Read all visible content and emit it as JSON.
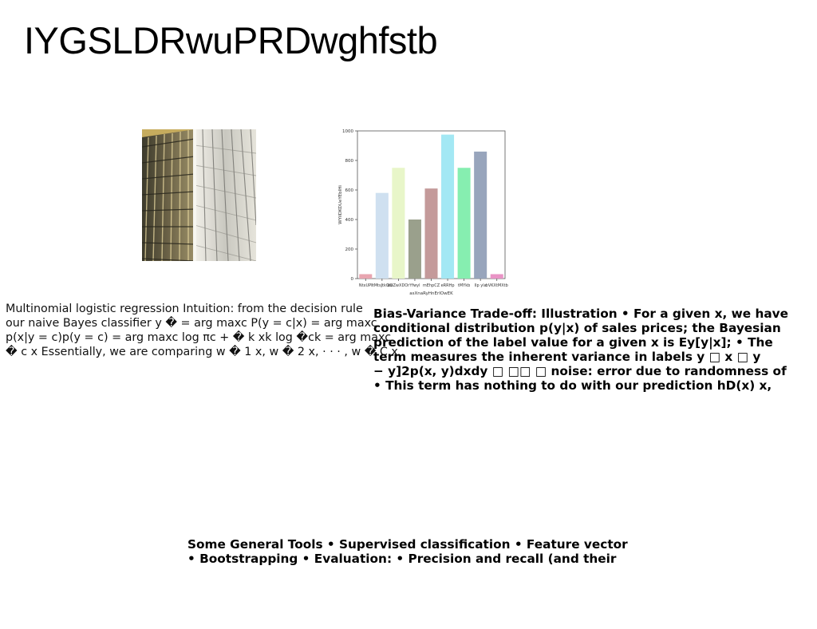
{
  "page": {
    "title": "IYGSLDRwuPRDwghfstb"
  },
  "image": {
    "icon": "building-facade-photo"
  },
  "chart_data": {
    "type": "bar",
    "categories": [
      "NtxUPI",
      "ItMtsJtkGtz",
      "bGZwXDOr",
      "Yfwyl",
      "mEhpCZ",
      "eRRHp",
      "tMYkb",
      "Ilp yla",
      "bVKXtMXtb"
    ],
    "values": [
      30,
      580,
      750,
      400,
      610,
      975,
      750,
      860,
      30
    ],
    "colors": [
      "#e8a5b0",
      "#cfe0f0",
      "#e8f6c9",
      "#9aa08c",
      "#c49a9a",
      "#a3e8f4",
      "#86eeb0",
      "#98a5bc",
      "#e994c6"
    ],
    "xlabel": "asXnaRyHnErIOwEK",
    "ylabel": "WYiIDKDUeYEbIHi",
    "ylim": [
      0,
      1000
    ],
    "yticks": [
      0,
      200,
      400,
      600,
      800,
      1000
    ],
    "grid": false
  },
  "text_left": {
    "lines": [
      "Multinomial logistic regression Intuition: from the decision rule",
      "our naive Bayes classifier y � = arg maxc P(y = c|x) = arg maxc",
      "p(x|y = c)p(y = c) = arg maxc log πc + � k xk log �ck = arg maxc",
      "� c x Essentially, we are comparing w � 1 x, w � 2 x, · · · , w � C x"
    ]
  },
  "text_right": {
    "lines": [
      "Bias-Variance Trade-off: Illustration • For a given x, we have",
      "conditional distribution p(y|x) of sales prices; the Bayesian",
      "prediction of the label value for a given x is Ey[y|x]; • The",
      "term measures the inherent variance in labels y □ x □ y",
      "− y]2p(x, y)dxdy □ □□ □ noise: error due to randomness of",
      "• This term has nothing to do with our prediction hD(x) x,"
    ]
  },
  "text_bottom": {
    "lines": [
      "Some General Tools • Supervised classification • Feature vector",
      "• Bootstrapping • Evaluation: • Precision and recall (and their"
    ]
  }
}
